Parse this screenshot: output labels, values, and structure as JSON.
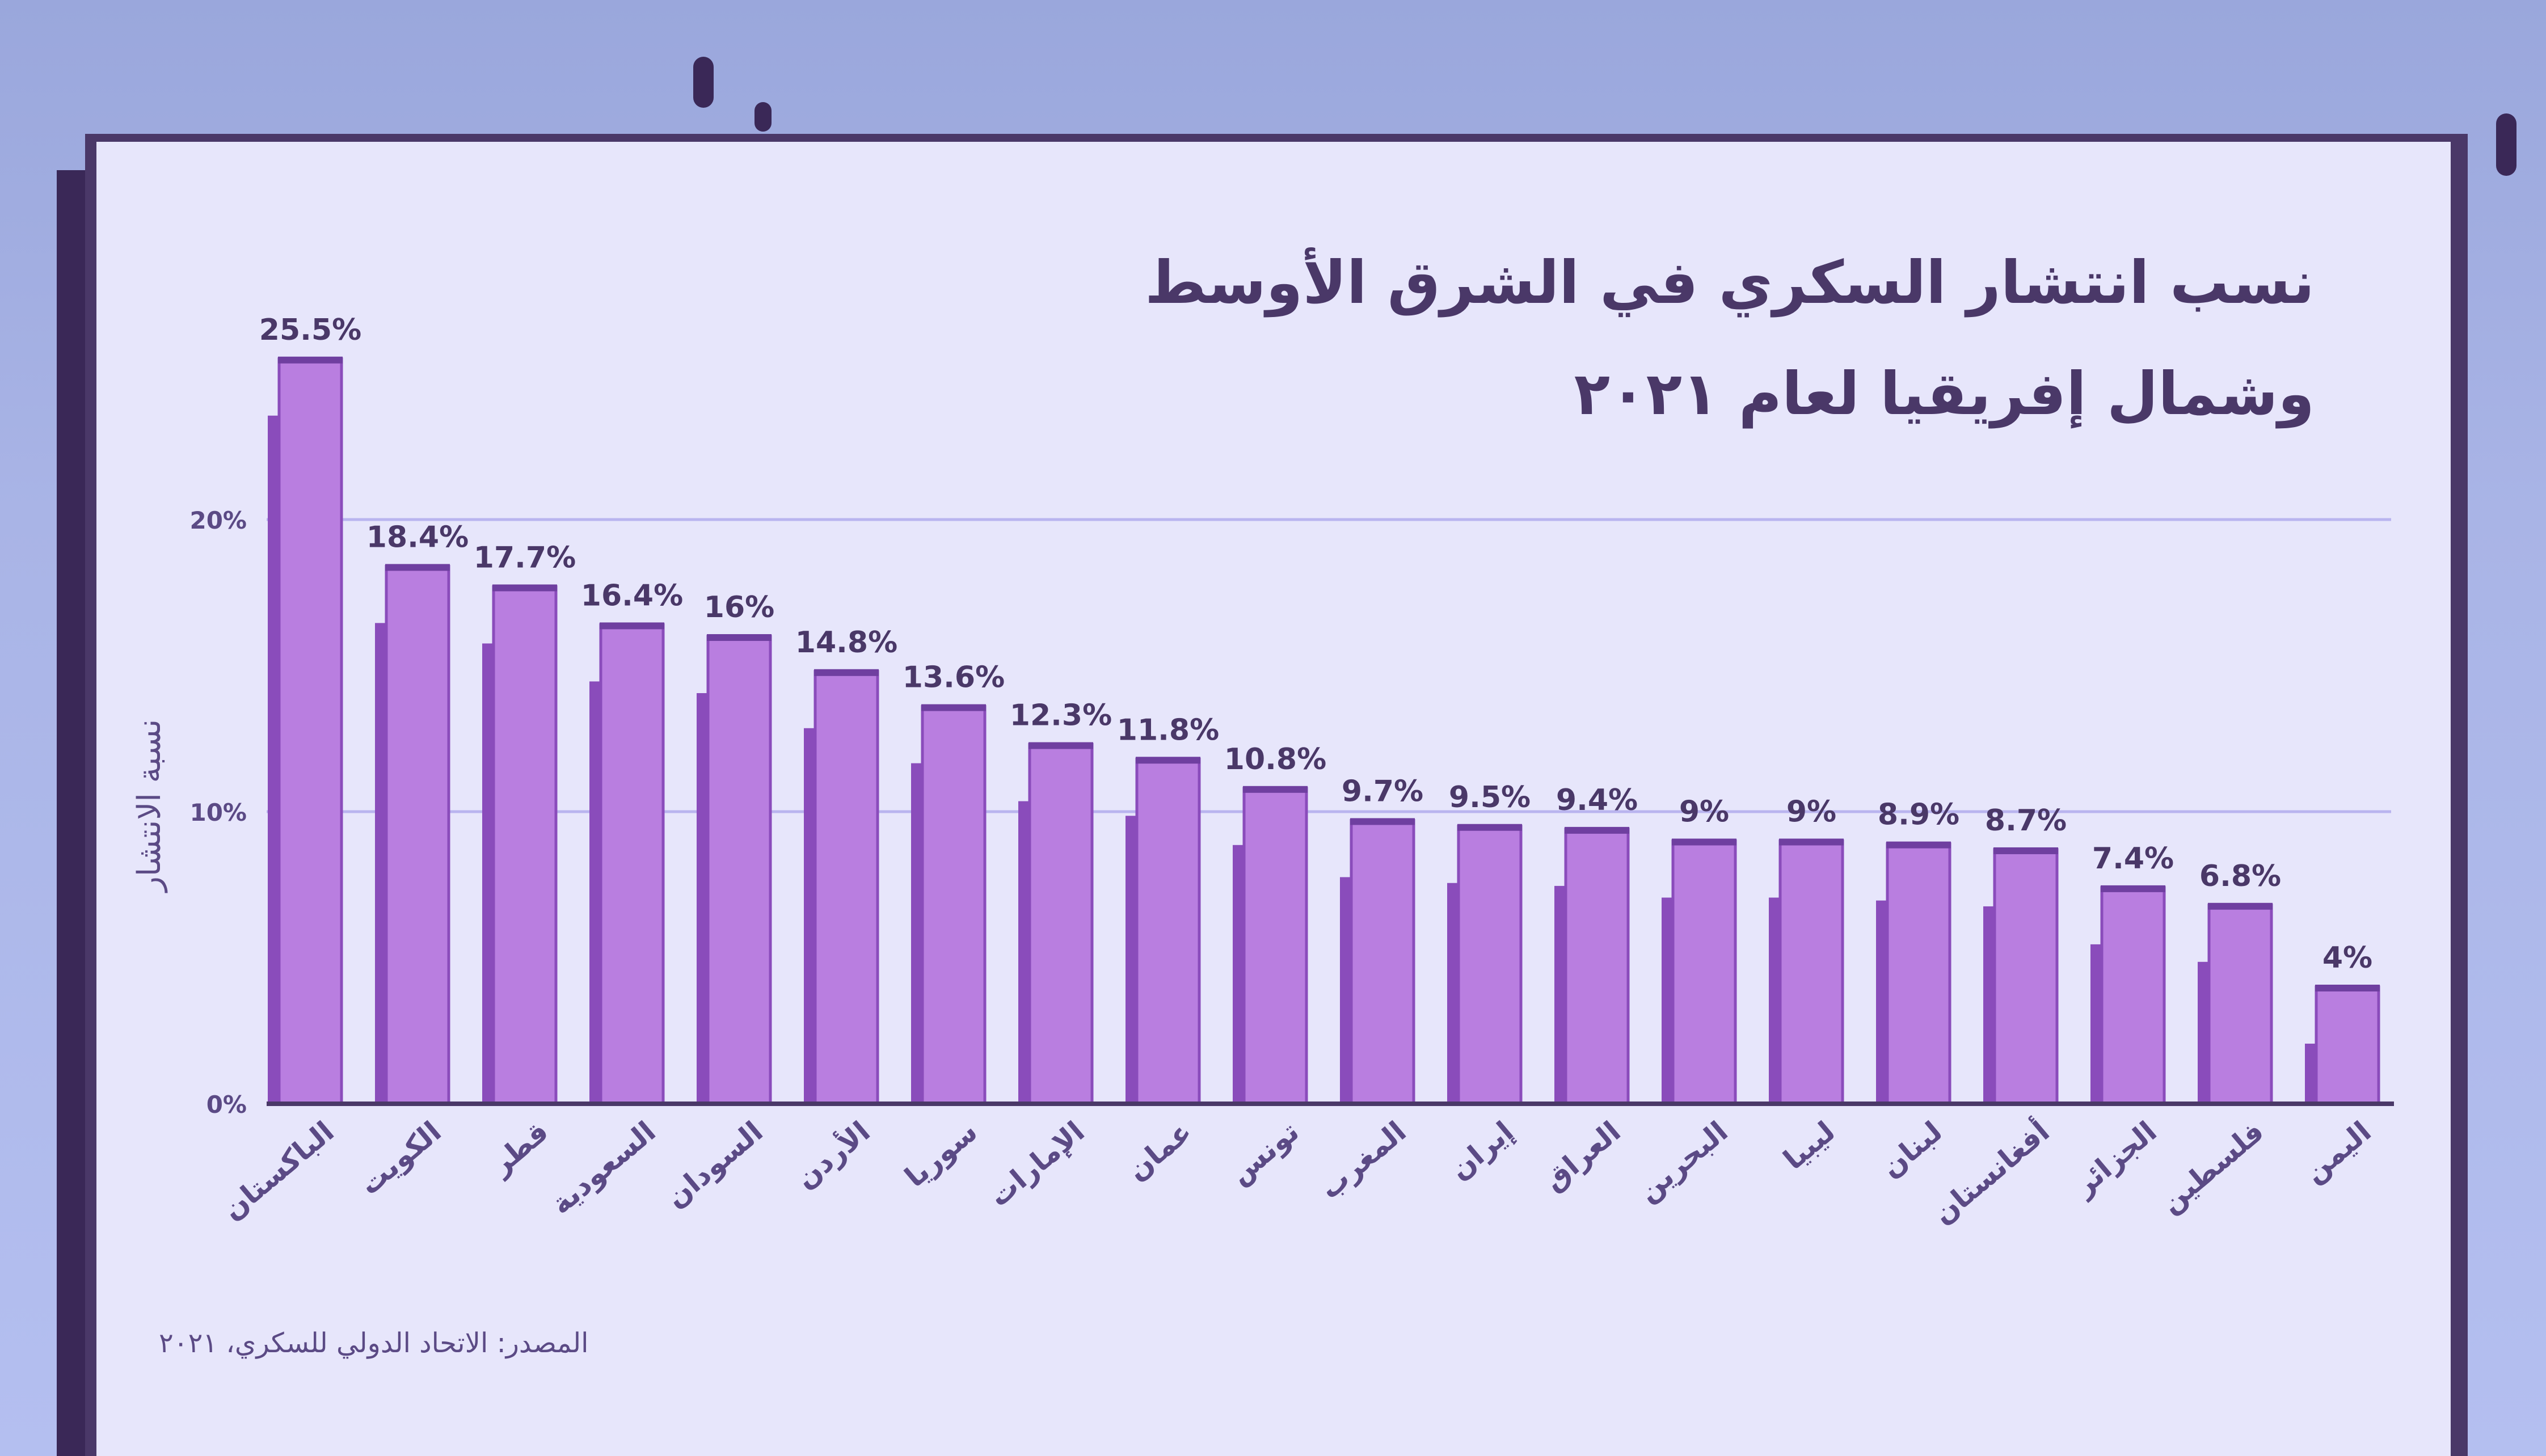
{
  "colors": {
    "background": "#a9b4e6",
    "paper": "#e7e6fb",
    "frame": "#4a3868",
    "bar_front": "#b97ee0",
    "bar_side": "#8a4cbb",
    "bar_top": "#6f3fa0",
    "gridline": "#b9b4ef",
    "text": "#4a3868",
    "axis_text": "#5b4a85"
  },
  "title": "نسب انتشار السكري في الشرق الأوسط\nوشمال إفريقيا لعام ٢٠٢١",
  "source": "المصدر: الاتحاد الدولي للسكري، ٢٠٢١",
  "chart_data": {
    "type": "bar",
    "title": "نسب انتشار السكري في الشرق الأوسط وشمال إفريقيا لعام ٢٠٢١",
    "ylabel": "نسبة الانتشار",
    "xlabel": "",
    "ylim": [
      0,
      30
    ],
    "yticks": [
      {
        "value": 0,
        "label": "0%"
      },
      {
        "value": 10,
        "label": "10%"
      },
      {
        "value": 20,
        "label": "20%"
      }
    ],
    "gridlines": [
      10,
      20
    ],
    "legend": "none",
    "categories": [
      "الباكستان",
      "الكويت",
      "قطر",
      "السعودية",
      "السودان",
      "الأردن",
      "سوريا",
      "الإمارات",
      "عمان",
      "تونس",
      "المغرب",
      "إيران",
      "العراق",
      "البحرين",
      "ليبيا",
      "لبنان",
      "أفغانستان",
      "الجزائر",
      "فلسطين",
      "اليمن"
    ],
    "values": [
      25.5,
      18.4,
      17.7,
      16.4,
      16,
      14.8,
      13.6,
      12.3,
      11.8,
      10.8,
      9.7,
      9.5,
      9.4,
      9,
      9,
      8.9,
      8.7,
      7.4,
      6.8,
      4
    ],
    "value_labels": [
      "25.5%",
      "18.4%",
      "17.7%",
      "16.4%",
      "16%",
      "14.8%",
      "13.6%",
      "12.3%",
      "11.8%",
      "10.8%",
      "9.7%",
      "9.5%",
      "9.4%",
      "9%",
      "9%",
      "8.9%",
      "8.7%",
      "7.4%",
      "6.8%",
      "4%"
    ]
  }
}
